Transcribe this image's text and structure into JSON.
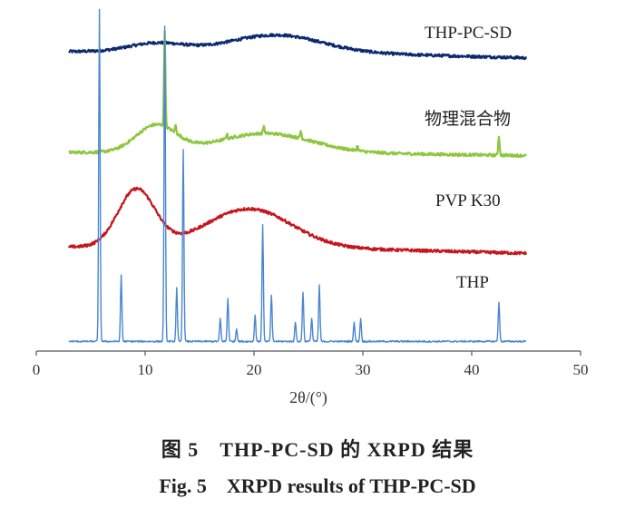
{
  "chart_data": {
    "type": "line",
    "title": "",
    "xlabel": "2θ/(°)",
    "ylabel": "",
    "xlim": [
      0,
      50
    ],
    "xticks": [
      "0",
      "10",
      "20",
      "30",
      "40",
      "50"
    ],
    "x_range": [
      3,
      45
    ],
    "series": [
      {
        "name": "THP-PC-SD",
        "color": "#0d2a6e",
        "kind": "amorphous",
        "baseline": 0.16,
        "halos": [
          {
            "center": 11.0,
            "width": 3.5,
            "height": 0.13
          },
          {
            "center": 22.0,
            "width": 6.0,
            "height": 0.26
          }
        ],
        "decay": {
          "start": 23,
          "amount": 0.1
        },
        "peaks": []
      },
      {
        "name": "物理混合物",
        "color": "#8dc63f",
        "kind": "mixture",
        "baseline": 0.1,
        "halos": [
          {
            "center": 11.0,
            "width": 2.6,
            "height": 0.42
          },
          {
            "center": 21.0,
            "width": 6.0,
            "height": 0.3
          }
        ],
        "decay": {
          "start": 24,
          "amount": 0.05
        },
        "peaks": [
          {
            "x": 11.8,
            "h": 1.5
          },
          {
            "x": 12.8,
            "h": 0.12
          },
          {
            "x": 17.5,
            "h": 0.08
          },
          {
            "x": 20.9,
            "h": 0.12
          },
          {
            "x": 24.3,
            "h": 0.12
          },
          {
            "x": 29.5,
            "h": 0.08
          },
          {
            "x": 42.5,
            "h": 0.3
          }
        ]
      },
      {
        "name": "PVP K30",
        "color": "#c4161c",
        "kind": "amorphous",
        "baseline": 0.14,
        "halos": [
          {
            "center": 9.2,
            "width": 2.4,
            "height": 0.9
          },
          {
            "center": 19.5,
            "width": 5.5,
            "height": 0.6
          }
        ],
        "decay": {
          "start": 22,
          "amount": 0.1
        },
        "peaks": []
      },
      {
        "name": "THP",
        "color": "#4a86cf",
        "kind": "crystalline",
        "baseline": 0.1,
        "halos": [],
        "decay": {
          "start": 50,
          "amount": 0
        },
        "peaks": [
          {
            "x": 5.8,
            "h": 10.0
          },
          {
            "x": 7.8,
            "h": 2.0
          },
          {
            "x": 11.8,
            "h": 9.5
          },
          {
            "x": 12.9,
            "h": 1.6
          },
          {
            "x": 13.5,
            "h": 5.8
          },
          {
            "x": 16.9,
            "h": 0.7
          },
          {
            "x": 17.6,
            "h": 1.3
          },
          {
            "x": 18.4,
            "h": 0.4
          },
          {
            "x": 20.1,
            "h": 0.8
          },
          {
            "x": 20.8,
            "h": 3.5
          },
          {
            "x": 21.6,
            "h": 1.4
          },
          {
            "x": 23.8,
            "h": 0.6
          },
          {
            "x": 24.5,
            "h": 1.5
          },
          {
            "x": 25.3,
            "h": 0.7
          },
          {
            "x": 26.0,
            "h": 1.7
          },
          {
            "x": 29.2,
            "h": 0.6
          },
          {
            "x": 29.8,
            "h": 0.7
          },
          {
            "x": 42.5,
            "h": 1.2
          }
        ]
      }
    ]
  },
  "caption": {
    "cn": "图 5　THP-PC-SD 的 XRPD 结果",
    "en": "Fig. 5　XRPD results of THP-PC-SD"
  }
}
